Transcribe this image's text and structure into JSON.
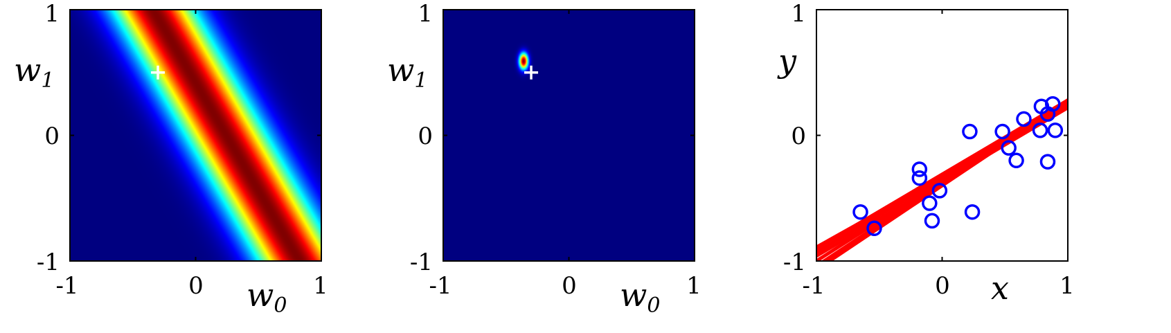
{
  "chart_data": [
    {
      "type": "heatmap",
      "title": "",
      "xlabel": {
        "symbol": "w",
        "subscript": "0"
      },
      "ylabel": {
        "symbol": "w",
        "subscript": "1"
      },
      "xlim": [
        -1,
        1
      ],
      "ylim": [
        -1,
        1
      ],
      "xticks": [
        "-1",
        "0",
        "1"
      ],
      "yticks": [
        "-1",
        "0",
        "1"
      ],
      "colormap": "jet",
      "background_color": "#00008f",
      "likelihood_ridge": {
        "w1_intercept": 0.42,
        "slope_dw1_dw0": -1.72,
        "sigma": 0.2
      },
      "true_weight_marker": {
        "w0": -0.3,
        "w1": 0.5,
        "symbol": "+",
        "color": "#ffffff"
      }
    },
    {
      "type": "heatmap",
      "title": "",
      "xlabel": {
        "symbol": "w",
        "subscript": "0"
      },
      "ylabel": {
        "symbol": "w",
        "subscript": "1"
      },
      "xlim": [
        -1,
        1
      ],
      "ylim": [
        -1,
        1
      ],
      "xticks": [
        "-1",
        "0",
        "1"
      ],
      "yticks": [
        "-1",
        "0",
        "1"
      ],
      "colormap": "jet",
      "background_color": "#00008f",
      "posterior_peak": {
        "w0": -0.36,
        "w1": 0.59,
        "sd_w0": 0.025,
        "sd_w1": 0.045
      },
      "true_weight_marker": {
        "w0": -0.3,
        "w1": 0.5,
        "symbol": "+",
        "color": "#ffffff"
      }
    },
    {
      "type": "scatter",
      "title": "",
      "xlabel": "x",
      "ylabel": "y",
      "xlim": [
        -1,
        1
      ],
      "ylim": [
        -1,
        1
      ],
      "xticks": [
        "-1",
        "0",
        "1"
      ],
      "yticks": [
        "-1",
        "0",
        "1"
      ],
      "series": [
        {
          "kind": "points",
          "marker": "o",
          "color": "#0000ff",
          "points": [
            [
              -0.65,
              -0.61
            ],
            [
              -0.54,
              -0.74
            ],
            [
              -0.18,
              -0.27
            ],
            [
              -0.18,
              -0.34
            ],
            [
              -0.1,
              -0.54
            ],
            [
              -0.08,
              -0.68
            ],
            [
              -0.02,
              -0.44
            ],
            [
              0.22,
              0.03
            ],
            [
              0.24,
              -0.61
            ],
            [
              0.48,
              0.03
            ],
            [
              0.53,
              -0.1
            ],
            [
              0.59,
              -0.2
            ],
            [
              0.65,
              0.13
            ],
            [
              0.78,
              0.04
            ],
            [
              0.79,
              0.23
            ],
            [
              0.84,
              0.17
            ],
            [
              0.84,
              -0.21
            ],
            [
              0.88,
              0.25
            ],
            [
              0.9,
              0.04
            ]
          ]
        },
        {
          "kind": "sample-lines",
          "color": "#ff0000",
          "lines": [
            {
              "intercept": -0.31,
              "slope": 0.59
            },
            {
              "intercept": -0.34,
              "slope": 0.59
            },
            {
              "intercept": -0.37,
              "slope": 0.59
            },
            {
              "intercept": -0.36,
              "slope": 0.64
            },
            {
              "intercept": -0.38,
              "slope": 0.66
            },
            {
              "intercept": -0.4,
              "slope": 0.67
            },
            {
              "intercept": -0.33,
              "slope": 0.56
            }
          ]
        }
      ]
    }
  ]
}
